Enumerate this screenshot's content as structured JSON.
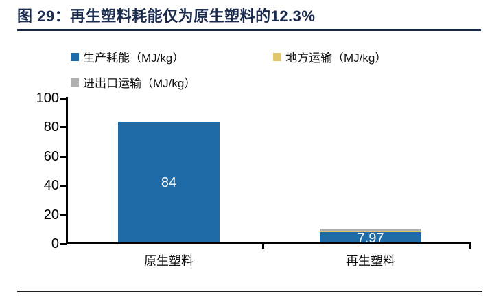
{
  "title": {
    "text": "图 29：再生塑料耗能仅为原生塑料的12.3%"
  },
  "colors": {
    "title_navy": "#1B2B4D",
    "bar_blue": "#1F6BA8",
    "bar_yellow": "#DFC66F",
    "bar_gray": "#AFAFAF",
    "axis_black": "#000000"
  },
  "legend": {
    "items": [
      {
        "label": "生产耗能（MJ/kg）",
        "color": "#1F6BA8"
      },
      {
        "label": "地方运输（MJ/kg）",
        "color": "#DFC66F"
      },
      {
        "label": "进出口运输（MJ/kg）",
        "color": "#AFAFAF"
      }
    ]
  },
  "chart_data": {
    "type": "bar",
    "stacked": true,
    "title": "再生塑料耗能仅为原生塑料的12.3%",
    "categories": [
      "原生塑料",
      "再生塑料"
    ],
    "series": [
      {
        "name": "生产耗能（MJ/kg）",
        "color": "#1F6BA8",
        "values": [
          84,
          7.97
        ]
      },
      {
        "name": "地方运输（MJ/kg）",
        "color": "#DFC66F",
        "values": [
          0,
          0.66
        ]
      },
      {
        "name": "进出口运输（MJ/kg）",
        "color": "#AFAFAF",
        "values": [
          0,
          1.7
        ]
      }
    ],
    "data_labels": [
      "84",
      "7.97"
    ],
    "xlabel": "",
    "ylabel": "",
    "ylim": [
      0,
      100
    ],
    "yticks": [
      0,
      20,
      40,
      60,
      80,
      100
    ],
    "grid": false,
    "legend_position": "top"
  }
}
